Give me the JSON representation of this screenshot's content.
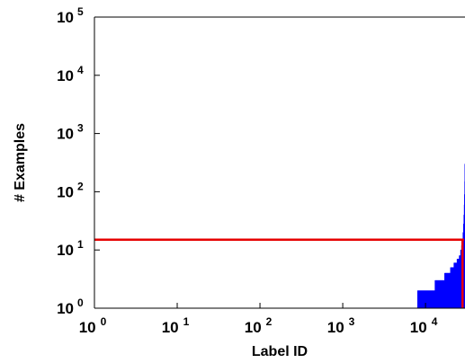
{
  "chart_data": {
    "type": "area",
    "title": "",
    "xlabel": "Label ID",
    "ylabel": "# Examples",
    "x_scale": "log",
    "y_scale": "log",
    "xlim": [
      1,
      30000
    ],
    "ylim": [
      1,
      100000
    ],
    "grid": false,
    "x_ticks": [
      {
        "base": "10",
        "exp": "0",
        "value": 1
      },
      {
        "base": "10",
        "exp": "1",
        "value": 10
      },
      {
        "base": "10",
        "exp": "2",
        "value": 100
      },
      {
        "base": "10",
        "exp": "3",
        "value": 1000
      },
      {
        "base": "10",
        "exp": "4",
        "value": 10000
      }
    ],
    "y_ticks": [
      {
        "base": "10",
        "exp": "0",
        "value": 1
      },
      {
        "base": "10",
        "exp": "1",
        "value": 10
      },
      {
        "base": "10",
        "exp": "2",
        "value": 100
      },
      {
        "base": "10",
        "exp": "3",
        "value": 1000
      },
      {
        "base": "10",
        "exp": "4",
        "value": 10000
      },
      {
        "base": "10",
        "exp": "5",
        "value": 100000
      }
    ],
    "distribution": {
      "color": "#0000ff",
      "x": [
        8000,
        13000,
        13000,
        17000,
        17000,
        20000,
        20000,
        22000,
        22000,
        24000,
        24000,
        25500,
        25500,
        26500,
        26500,
        27200,
        27200,
        27800,
        27800,
        28300,
        28300,
        28700,
        28700,
        29000,
        29000,
        29300,
        29300,
        29500,
        29500,
        29700,
        29700,
        29850,
        29850,
        30000
      ],
      "y": [
        2,
        2,
        3,
        3,
        4,
        4,
        5,
        5,
        6,
        6,
        7,
        7,
        8,
        8,
        10,
        10,
        12,
        12,
        15,
        15,
        20,
        20,
        28,
        28,
        40,
        40,
        60,
        60,
        90,
        90,
        150,
        150,
        300,
        300
      ]
    },
    "threshold_line": {
      "color": "#e60000",
      "y": 15,
      "vertical_x": 28000
    }
  }
}
